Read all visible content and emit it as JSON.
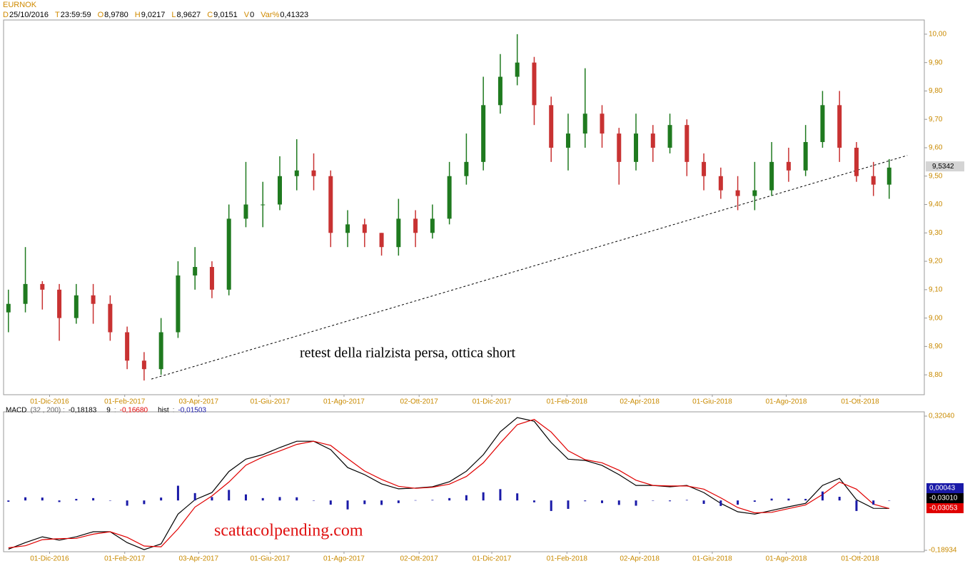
{
  "chart_data": [
    {
      "type": "candlestick",
      "title": "EURNOK",
      "info": [
        {
          "key": "D",
          "value": "25/10/2016"
        },
        {
          "key": "T",
          "value": "23:59:59"
        },
        {
          "key": "O",
          "value": "8,9780"
        },
        {
          "key": "H",
          "value": "9,0217"
        },
        {
          "key": "L",
          "value": "8,9627"
        },
        {
          "key": "C",
          "value": "9,0151"
        },
        {
          "key": "V",
          "value": "0"
        },
        {
          "key": "Var%",
          "value": "0,41323"
        }
      ],
      "x": [
        "2016-10-28",
        "2016-11-11",
        "2016-11-25",
        "2016-12-09",
        "2016-12-23",
        "2017-01-06",
        "2017-01-20",
        "2017-02-03",
        "2017-02-17",
        "2017-03-03",
        "2017-03-17",
        "2017-03-31",
        "2017-04-14",
        "2017-04-28",
        "2017-05-12",
        "2017-05-26",
        "2017-06-09",
        "2017-06-23",
        "2017-07-07",
        "2017-07-21",
        "2017-08-04",
        "2017-08-18",
        "2017-09-01",
        "2017-09-15",
        "2017-09-29",
        "2017-10-13",
        "2017-10-27",
        "2017-11-10",
        "2017-11-24",
        "2017-12-08",
        "2017-12-22",
        "2018-01-05",
        "2018-01-19",
        "2018-02-02",
        "2018-02-16",
        "2018-03-02",
        "2018-03-16",
        "2018-03-30",
        "2018-04-13",
        "2018-04-27",
        "2018-05-11",
        "2018-05-25",
        "2018-06-08",
        "2018-06-22",
        "2018-07-06",
        "2018-07-20",
        "2018-08-03",
        "2018-08-17",
        "2018-08-31",
        "2018-09-14",
        "2018-09-28",
        "2018-10-12",
        "2018-10-25"
      ],
      "open": [
        9.02,
        9.05,
        9.12,
        9.1,
        9.0,
        9.08,
        9.05,
        8.95,
        8.85,
        8.82,
        8.95,
        9.15,
        9.18,
        9.1,
        9.35,
        9.4,
        9.4,
        9.5,
        9.52,
        9.5,
        9.3,
        9.33,
        9.3,
        9.25,
        9.35,
        9.3,
        9.35,
        9.5,
        9.55,
        9.75,
        9.85,
        9.9,
        9.75,
        9.6,
        9.65,
        9.72,
        9.65,
        9.55,
        9.65,
        9.6,
        9.68,
        9.55,
        9.5,
        9.45,
        9.43,
        9.45,
        9.55,
        9.52,
        9.62,
        9.75,
        9.6,
        9.5,
        9.47
      ],
      "high": [
        9.1,
        9.25,
        9.13,
        9.12,
        9.12,
        9.12,
        9.08,
        8.97,
        8.88,
        9.0,
        9.2,
        9.25,
        9.2,
        9.4,
        9.55,
        9.48,
        9.57,
        9.63,
        9.58,
        9.52,
        9.38,
        9.35,
        9.3,
        9.42,
        9.38,
        9.4,
        9.55,
        9.65,
        9.85,
        9.93,
        10.0,
        9.92,
        9.78,
        9.72,
        9.88,
        9.75,
        9.67,
        9.72,
        9.68,
        9.72,
        9.7,
        9.58,
        9.53,
        9.5,
        9.55,
        9.62,
        9.6,
        9.68,
        9.8,
        9.8,
        9.62,
        9.55,
        9.56
      ],
      "low": [
        8.95,
        9.02,
        9.03,
        8.92,
        8.98,
        8.98,
        8.92,
        8.82,
        8.78,
        8.8,
        8.93,
        9.1,
        9.07,
        9.08,
        9.32,
        9.32,
        9.38,
        9.45,
        9.45,
        9.25,
        9.25,
        9.25,
        9.22,
        9.22,
        9.25,
        9.28,
        9.33,
        9.47,
        9.52,
        9.72,
        9.82,
        9.68,
        9.55,
        9.52,
        9.6,
        9.6,
        9.47,
        9.52,
        9.55,
        9.58,
        9.5,
        9.45,
        9.42,
        9.38,
        9.38,
        9.43,
        9.48,
        9.5,
        9.6,
        9.55,
        9.48,
        9.43,
        9.42
      ],
      "close": [
        9.05,
        9.12,
        9.1,
        9.0,
        9.08,
        9.05,
        8.95,
        8.85,
        8.82,
        8.95,
        9.15,
        9.18,
        9.1,
        9.35,
        9.4,
        9.4,
        9.5,
        9.52,
        9.5,
        9.3,
        9.33,
        9.3,
        9.25,
        9.35,
        9.3,
        9.35,
        9.5,
        9.55,
        9.75,
        9.85,
        9.9,
        9.75,
        9.6,
        9.65,
        9.72,
        9.65,
        9.55,
        9.65,
        9.6,
        9.68,
        9.55,
        9.5,
        9.45,
        9.43,
        9.45,
        9.55,
        9.52,
        9.62,
        9.75,
        9.6,
        9.5,
        9.47,
        9.53
      ],
      "up_color": "#1f7a1f",
      "down_color": "#c83232",
      "xlim": [
        "2016-10-24",
        "2018-11-23"
      ],
      "xticks": [
        {
          "value": "2016-12-01",
          "label": "01-Dic-2016"
        },
        {
          "value": "2017-02-01",
          "label": "01-Feb-2017"
        },
        {
          "value": "2017-04-03",
          "label": "03-Apr-2017"
        },
        {
          "value": "2017-06-01",
          "label": "01-Giu-2017"
        },
        {
          "value": "2017-08-01",
          "label": "01-Ago-2017"
        },
        {
          "value": "2017-10-02",
          "label": "02-Ott-2017"
        },
        {
          "value": "2017-12-01",
          "label": "01-Dic-2017"
        },
        {
          "value": "2018-02-01",
          "label": "01-Feb-2018"
        },
        {
          "value": "2018-04-02",
          "label": "02-Apr-2018"
        },
        {
          "value": "2018-06-01",
          "label": "01-Giu-2018"
        },
        {
          "value": "2018-08-01",
          "label": "01-Ago-2018"
        },
        {
          "value": "2018-10-01",
          "label": "01-Ott-2018"
        }
      ],
      "ylim": [
        8.73,
        10.05
      ],
      "yticks": [
        {
          "value": 10.0,
          "label": "10,00"
        },
        {
          "value": 9.9,
          "label": "9,90"
        },
        {
          "value": 9.8,
          "label": "9,80"
        },
        {
          "value": 9.7,
          "label": "9,70"
        },
        {
          "value": 9.6,
          "label": "9,60"
        },
        {
          "value": 9.5,
          "label": "9,50"
        },
        {
          "value": 9.4,
          "label": "9,40"
        },
        {
          "value": 9.3,
          "label": "9,30"
        },
        {
          "value": 9.2,
          "label": "9,20"
        },
        {
          "value": 9.1,
          "label": "9,10"
        },
        {
          "value": 9.0,
          "label": "9,00"
        },
        {
          "value": 8.9,
          "label": "8,90"
        },
        {
          "value": 8.8,
          "label": "8,80"
        }
      ],
      "trendline": {
        "x": [
          "2017-02-23",
          "2018-11-09"
        ],
        "y": [
          8.785,
          9.573
        ]
      },
      "last_price": {
        "value": 9.5342,
        "label": "9,5342"
      },
      "annotation": "retest della rialzista persa, ottica short"
    },
    {
      "type": "line",
      "x": [
        "2016-10-28",
        "2016-11-11",
        "2016-11-25",
        "2016-12-09",
        "2016-12-23",
        "2017-01-06",
        "2017-01-20",
        "2017-02-03",
        "2017-02-17",
        "2017-03-03",
        "2017-03-17",
        "2017-03-31",
        "2017-04-14",
        "2017-04-28",
        "2017-05-12",
        "2017-05-26",
        "2017-06-09",
        "2017-06-23",
        "2017-07-07",
        "2017-07-21",
        "2017-08-04",
        "2017-08-18",
        "2017-09-01",
        "2017-09-15",
        "2017-09-29",
        "2017-10-13",
        "2017-10-27",
        "2017-11-10",
        "2017-11-24",
        "2017-12-08",
        "2017-12-22",
        "2018-01-05",
        "2018-01-19",
        "2018-02-02",
        "2018-02-16",
        "2018-03-02",
        "2018-03-16",
        "2018-03-30",
        "2018-04-13",
        "2018-04-27",
        "2018-05-11",
        "2018-05-25",
        "2018-06-08",
        "2018-06-22",
        "2018-07-06",
        "2018-07-20",
        "2018-08-03",
        "2018-08-17",
        "2018-08-31",
        "2018-09-14",
        "2018-09-28",
        "2018-10-12",
        "2018-10-25"
      ],
      "series": [
        {
          "name": "MACD",
          "params": "(32 , 200) :",
          "readout": "-0,18183",
          "last_label": "-0,03010",
          "color": "#000000",
          "kind": "line",
          "values": [
            -0.185,
            -0.16,
            -0.138,
            -0.151,
            -0.138,
            -0.119,
            -0.119,
            -0.16,
            -0.187,
            -0.165,
            -0.052,
            0.003,
            0.03,
            0.11,
            0.157,
            0.174,
            0.201,
            0.225,
            0.225,
            0.193,
            0.125,
            0.098,
            0.063,
            0.044,
            0.047,
            0.052,
            0.071,
            0.111,
            0.174,
            0.261,
            0.315,
            0.301,
            0.22,
            0.157,
            0.152,
            0.133,
            0.098,
            0.057,
            0.057,
            0.052,
            0.057,
            0.03,
            -0.011,
            -0.043,
            -0.052,
            -0.038,
            -0.024,
            -0.011,
            0.057,
            0.084,
            0.003,
            -0.03,
            -0.0301
          ]
        },
        {
          "name": "9",
          "params": ":",
          "readout": "-0,16680",
          "last_label": "-0,03053",
          "color": "#e00000",
          "kind": "line",
          "values": [
            -0.18,
            -0.172,
            -0.149,
            -0.145,
            -0.144,
            -0.128,
            -0.119,
            -0.14,
            -0.173,
            -0.176,
            -0.108,
            -0.025,
            0.017,
            0.07,
            0.134,
            0.165,
            0.188,
            0.213,
            0.225,
            0.209,
            0.159,
            0.112,
            0.08,
            0.054,
            0.046,
            0.05,
            0.062,
            0.091,
            0.143,
            0.218,
            0.288,
            0.308,
            0.26,
            0.189,
            0.155,
            0.143,
            0.115,
            0.077,
            0.057,
            0.055,
            0.055,
            0.043,
            0.01,
            -0.027,
            -0.047,
            -0.045,
            -0.031,
            -0.017,
            0.023,
            0.07,
            0.043,
            -0.014,
            -0.03053
          ]
        },
        {
          "name": "hist",
          "params": ":",
          "readout": "-0,01503",
          "last_label": "0,00043",
          "color": "#1a1aa8",
          "kind": "bar",
          "values": [
            -0.005,
            0.012,
            0.011,
            -0.006,
            0.006,
            0.009,
            0,
            -0.02,
            -0.014,
            0.011,
            0.056,
            0.028,
            0.013,
            0.04,
            0.023,
            0.009,
            0.013,
            0.012,
            0,
            -0.016,
            -0.034,
            -0.014,
            -0.017,
            -0.01,
            0.001,
            0.002,
            0.009,
            0.02,
            0.031,
            0.043,
            0.027,
            -0.007,
            -0.04,
            -0.032,
            -0.003,
            -0.01,
            -0.017,
            -0.02,
            0,
            -0.003,
            0.002,
            -0.013,
            -0.021,
            -0.016,
            -0.005,
            0.007,
            0.007,
            0.006,
            0.034,
            0.014,
            -0.04,
            -0.016,
            0.00043
          ]
        }
      ],
      "xlim": [
        "2016-10-24",
        "2018-11-23"
      ],
      "xticks": [
        {
          "value": "2016-12-01",
          "label": "01-Dic-2016"
        },
        {
          "value": "2017-02-01",
          "label": "01-Feb-2017"
        },
        {
          "value": "2017-04-03",
          "label": "03-Apr-2017"
        },
        {
          "value": "2017-06-01",
          "label": "01-Giu-2017"
        },
        {
          "value": "2017-08-01",
          "label": "01-Ago-2017"
        },
        {
          "value": "2017-10-02",
          "label": "02-Ott-2017"
        },
        {
          "value": "2017-12-01",
          "label": "01-Dic-2017"
        },
        {
          "value": "2018-02-01",
          "label": "01-Feb-2018"
        },
        {
          "value": "2018-04-02",
          "label": "02-Apr-2018"
        },
        {
          "value": "2018-06-01",
          "label": "01-Giu-2018"
        },
        {
          "value": "2018-08-01",
          "label": "01-Ago-2018"
        },
        {
          "value": "2018-10-01",
          "label": "01-Ott-2018"
        }
      ],
      "ylim": [
        -0.1948,
        0.3367
      ],
      "yticks": [
        {
          "value": 0.3204,
          "label": "0,32040"
        },
        {
          "value": -0.18934,
          "label": "-0,18934"
        }
      ],
      "watermark": "scattacolpending.com"
    }
  ]
}
